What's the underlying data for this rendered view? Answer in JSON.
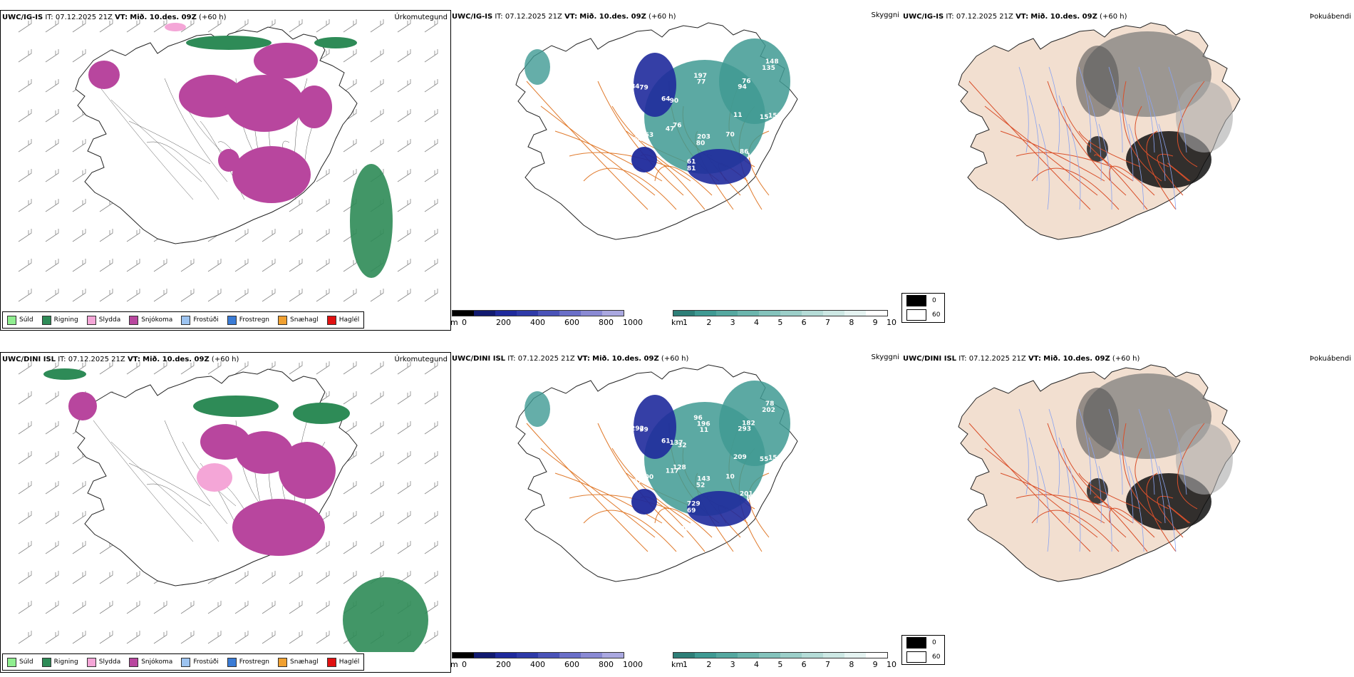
{
  "rows": [
    {
      "model": "UWC/IG-IS",
      "it_label": "IT:",
      "it_value": "07.12.2025 21Z",
      "vt_label": "VT:",
      "vt_value": "Mið. 10.des. 09Z",
      "lead": "(+60 h)",
      "precip_label": "Úrkomutegund",
      "vis_label": "Skyggni",
      "fog_label": "Þokuábendi",
      "vis_numbers": [
        "11",
        "70",
        "80",
        "47",
        "64",
        "197",
        "76",
        "155",
        "13",
        "81",
        "64",
        "84",
        "24",
        "148",
        "160",
        "125",
        "203",
        "76",
        "90",
        "77",
        "94",
        "15",
        "86",
        "61",
        "163",
        "79",
        "106",
        "135",
        "429"
      ],
      "dini_numbers": []
    },
    {
      "model": "UWC/DINI ISL",
      "it_label": "IT:",
      "it_value": "07.12.2025 21Z",
      "vt_label": "VT:",
      "vt_value": "Mið. 10.des. 09Z",
      "lead": "(+60 h)",
      "precip_label": "Úrkomutegund",
      "vis_label": "Skyggni",
      "fog_label": "Þokuábendi",
      "vis_numbers": [
        "209",
        "10",
        "52",
        "117",
        "61",
        "96",
        "182",
        "159",
        "85",
        "69",
        "279",
        "292",
        "69",
        "78",
        "61",
        "02",
        "143",
        "128",
        "137",
        "196",
        "293",
        "55",
        "201",
        "729",
        "100",
        "99",
        "15",
        "202",
        "117",
        "23",
        "106",
        "74",
        "32",
        "11"
      ]
    }
  ],
  "legend": [
    {
      "label": "Súld",
      "color": "#90ee90"
    },
    {
      "label": "Rigning",
      "color": "#2e8b57"
    },
    {
      "label": "Slydda",
      "color": "#f4a6d7"
    },
    {
      "label": "Snjókoma",
      "color": "#b8469e"
    },
    {
      "label": "Frostúði",
      "color": "#9cc3f0"
    },
    {
      "label": "Frostregn",
      "color": "#3a7bd5"
    },
    {
      "label": "Snæhagl",
      "color": "#f0a030"
    },
    {
      "label": "Haglél",
      "color": "#e01010"
    }
  ],
  "cbar_m": {
    "unit": "m",
    "ticks": [
      "0",
      "200",
      "400",
      "600",
      "800",
      "1000"
    ]
  },
  "cbar_km": {
    "unit": "km",
    "ticks": [
      "1",
      "2",
      "3",
      "4",
      "5",
      "6",
      "7",
      "8",
      "9",
      "10"
    ]
  },
  "fog_key": [
    {
      "label": "0",
      "color": "#000000"
    },
    {
      "label": "60",
      "color": "#ffffff"
    }
  ],
  "colors": {
    "rain": "#2e8b57",
    "snow": "#b8469e",
    "sleet": "#f4a6d7",
    "vis_teal": "#3f9a93",
    "vis_blue": "#1f2a9c",
    "road": "#e07a2c",
    "land": "#f2dfd0",
    "fog_road": "#d94f2a",
    "river": "#8aa3f0"
  }
}
